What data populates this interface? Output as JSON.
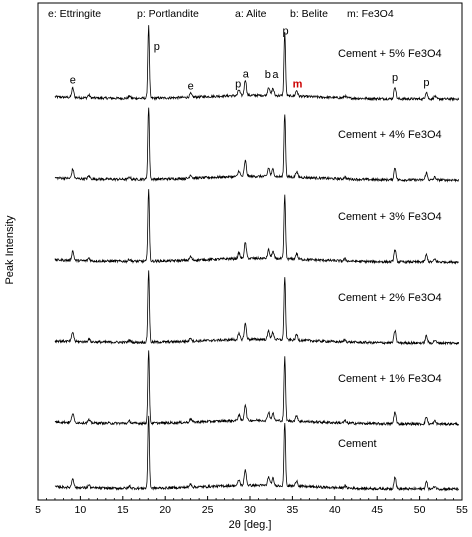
{
  "chart_data": {
    "type": "line",
    "title": "",
    "xlabel": "2θ [deg.]",
    "ylabel": "Peak Intensity",
    "xlim": [
      5,
      55
    ],
    "x_ticks": [
      5,
      10,
      15,
      20,
      25,
      30,
      35,
      40,
      45,
      50,
      55
    ],
    "y_ticks_shown": false,
    "grid": false,
    "legend_text": [
      "e: Ettringite",
      "p: Portlandite",
      "a: Alite",
      "b: Belite",
      "m: Fe3O4"
    ],
    "peak_labels": [
      {
        "text": "e",
        "x": 9.1,
        "color": "#000000"
      },
      {
        "text": "p",
        "x": 18.3,
        "color": "#000000"
      },
      {
        "text": "e",
        "x": 23.0,
        "color": "#000000"
      },
      {
        "text": "p",
        "x": 28.6,
        "color": "#000000"
      },
      {
        "text": "a",
        "x": 29.5,
        "color": "#000000"
      },
      {
        "text": "b",
        "x": 32.1,
        "color": "#000000"
      },
      {
        "text": "a",
        "x": 33.0,
        "color": "#000000"
      },
      {
        "text": "p",
        "x": 34.2,
        "color": "#000000"
      },
      {
        "text": "m",
        "x": 35.6,
        "color": "#cc0000"
      },
      {
        "text": "p",
        "x": 47.1,
        "color": "#000000"
      },
      {
        "text": "p",
        "x": 50.8,
        "color": "#000000"
      }
    ],
    "peaks": [
      {
        "x": 9.1,
        "h": 0.13
      },
      {
        "x": 11.0,
        "h": 0.04
      },
      {
        "x": 15.8,
        "h": 0.03
      },
      {
        "x": 18.05,
        "h": 1.0
      },
      {
        "x": 23.0,
        "h": 0.05
      },
      {
        "x": 28.7,
        "h": 0.08
      },
      {
        "x": 29.45,
        "h": 0.22
      },
      {
        "x": 32.2,
        "h": 0.12
      },
      {
        "x": 32.7,
        "h": 0.1
      },
      {
        "x": 34.1,
        "h": 0.88
      },
      {
        "x": 35.5,
        "h": 0.08
      },
      {
        "x": 41.2,
        "h": 0.03
      },
      {
        "x": 47.1,
        "h": 0.17
      },
      {
        "x": 50.8,
        "h": 0.1
      },
      {
        "x": 51.8,
        "h": 0.04
      }
    ],
    "series": [
      {
        "name": "Cement + 5% Fe3O4"
      },
      {
        "name": "Cement + 4% Fe3O4"
      },
      {
        "name": "Cement + 3% Fe3O4"
      },
      {
        "name": "Cement + 2% Fe3O4"
      },
      {
        "name": "Cement + 1% Fe3O4"
      },
      {
        "name": "Cement"
      }
    ]
  }
}
